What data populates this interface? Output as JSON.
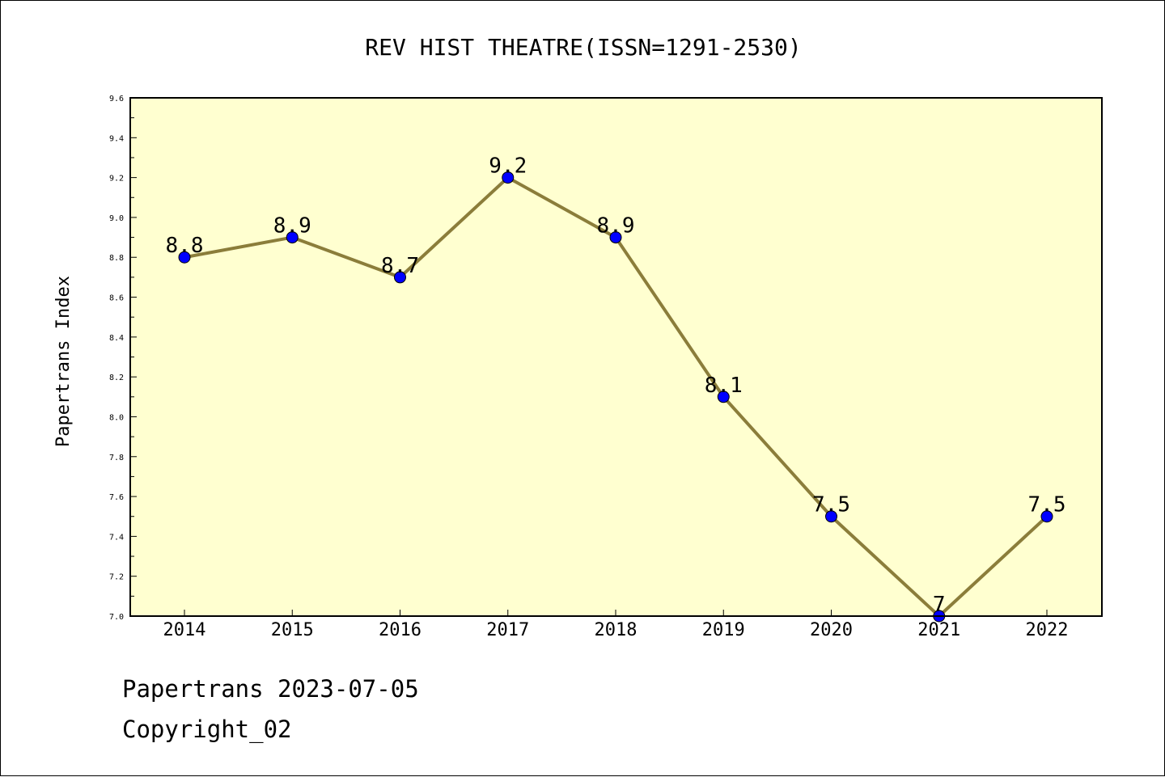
{
  "chart_data": {
    "type": "line",
    "title": "REV HIST THEATRE(ISSN=1291-2530)",
    "xlabel": "",
    "ylabel": "Papertrans Index",
    "categories": [
      "2014",
      "2015",
      "2016",
      "2017",
      "2018",
      "2019",
      "2020",
      "2021",
      "2022"
    ],
    "values": [
      8.8,
      8.9,
      8.7,
      9.2,
      8.9,
      8.1,
      7.5,
      7.0,
      7.5
    ],
    "data_labels": [
      "8.8",
      "8.9",
      "8.7",
      "9.2",
      "8.9",
      "8.1",
      "7.5",
      "7",
      "7.5"
    ],
    "ylim": [
      7.0,
      9.6
    ],
    "yticks": [
      "7.0",
      "7.2",
      "7.4",
      "7.6",
      "7.8",
      "8.0",
      "8.2",
      "8.4",
      "8.6",
      "8.8",
      "9.0",
      "9.2",
      "9.4",
      "9.6"
    ],
    "grid": false,
    "legend": "none",
    "colors": {
      "plot_background": "#ffffd0",
      "line": "#8b7d3a",
      "marker": "#0000ff",
      "axes": "#000000"
    }
  },
  "footer": {
    "line1": "Papertrans 2023-07-05",
    "line2": "Copyright_02"
  }
}
